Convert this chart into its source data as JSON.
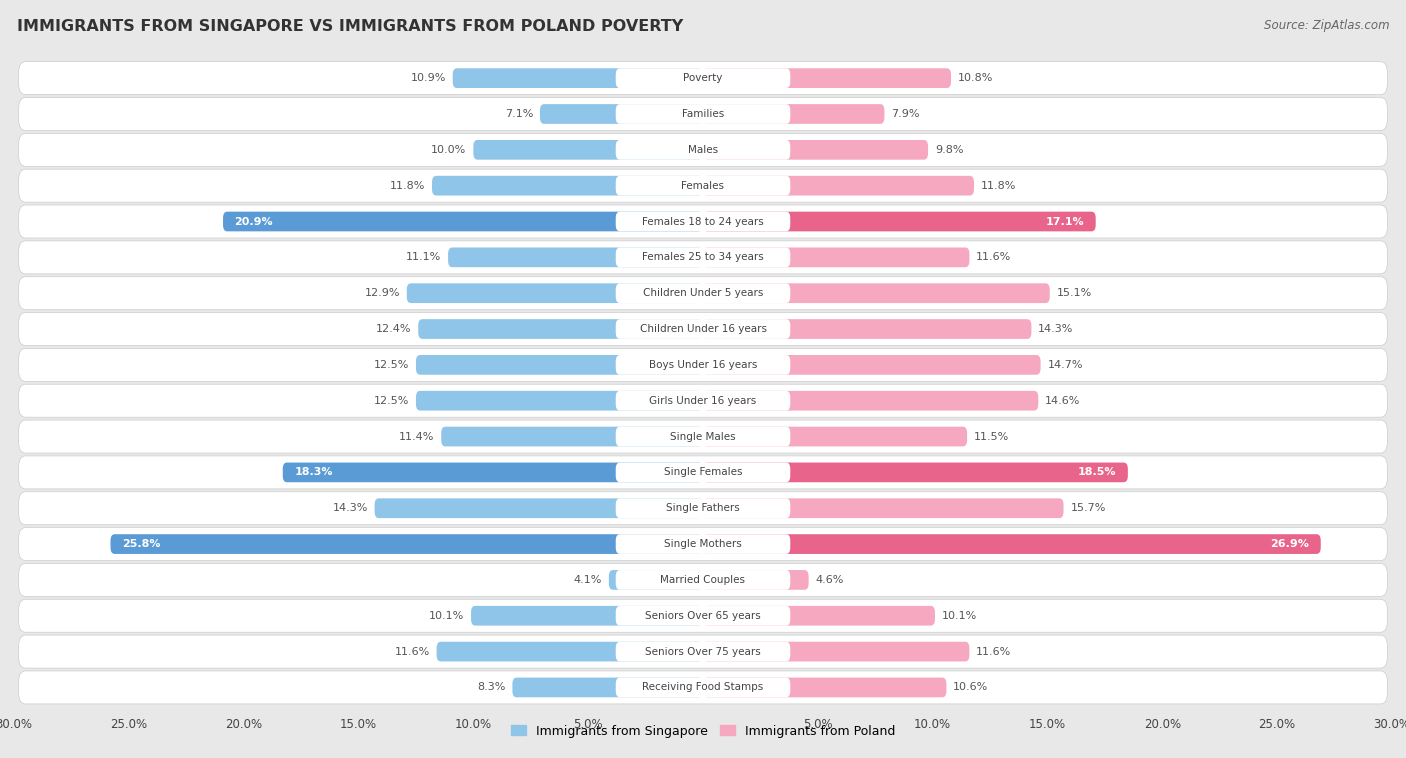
{
  "title": "IMMIGRANTS FROM SINGAPORE VS IMMIGRANTS FROM POLAND POVERTY",
  "source": "Source: ZipAtlas.com",
  "categories": [
    "Poverty",
    "Families",
    "Males",
    "Females",
    "Females 18 to 24 years",
    "Females 25 to 34 years",
    "Children Under 5 years",
    "Children Under 16 years",
    "Boys Under 16 years",
    "Girls Under 16 years",
    "Single Males",
    "Single Females",
    "Single Fathers",
    "Single Mothers",
    "Married Couples",
    "Seniors Over 65 years",
    "Seniors Over 75 years",
    "Receiving Food Stamps"
  ],
  "singapore_values": [
    10.9,
    7.1,
    10.0,
    11.8,
    20.9,
    11.1,
    12.9,
    12.4,
    12.5,
    12.5,
    11.4,
    18.3,
    14.3,
    25.8,
    4.1,
    10.1,
    11.6,
    8.3
  ],
  "poland_values": [
    10.8,
    7.9,
    9.8,
    11.8,
    17.1,
    11.6,
    15.1,
    14.3,
    14.7,
    14.6,
    11.5,
    18.5,
    15.7,
    26.9,
    4.6,
    10.1,
    11.6,
    10.6
  ],
  "singapore_color_normal": "#8EC5E8",
  "poland_color_normal": "#F5A8C0",
  "singapore_color_highlight": "#5B9BD5",
  "poland_color_highlight": "#E8648A",
  "highlight_rows": [
    4,
    11,
    13
  ],
  "xlim": 30.0,
  "background_color": "#e8e8e8",
  "row_bg_white": "#ffffff",
  "row_bg_gray": "#eeeeee",
  "xlabel_left": "Immigrants from Singapore",
  "xlabel_right": "Immigrants from Poland",
  "xtick_labels": [
    "30.0%",
    "25.0%",
    "20.0%",
    "15.0%",
    "10.0%",
    "5.0%",
    "5.0%",
    "10.0%",
    "15.0%",
    "20.0%",
    "25.0%",
    "30.0%"
  ],
  "xtick_positions": [
    -30,
    -25,
    -20,
    -15,
    -10,
    -5,
    5,
    10,
    15,
    20,
    25,
    30
  ]
}
